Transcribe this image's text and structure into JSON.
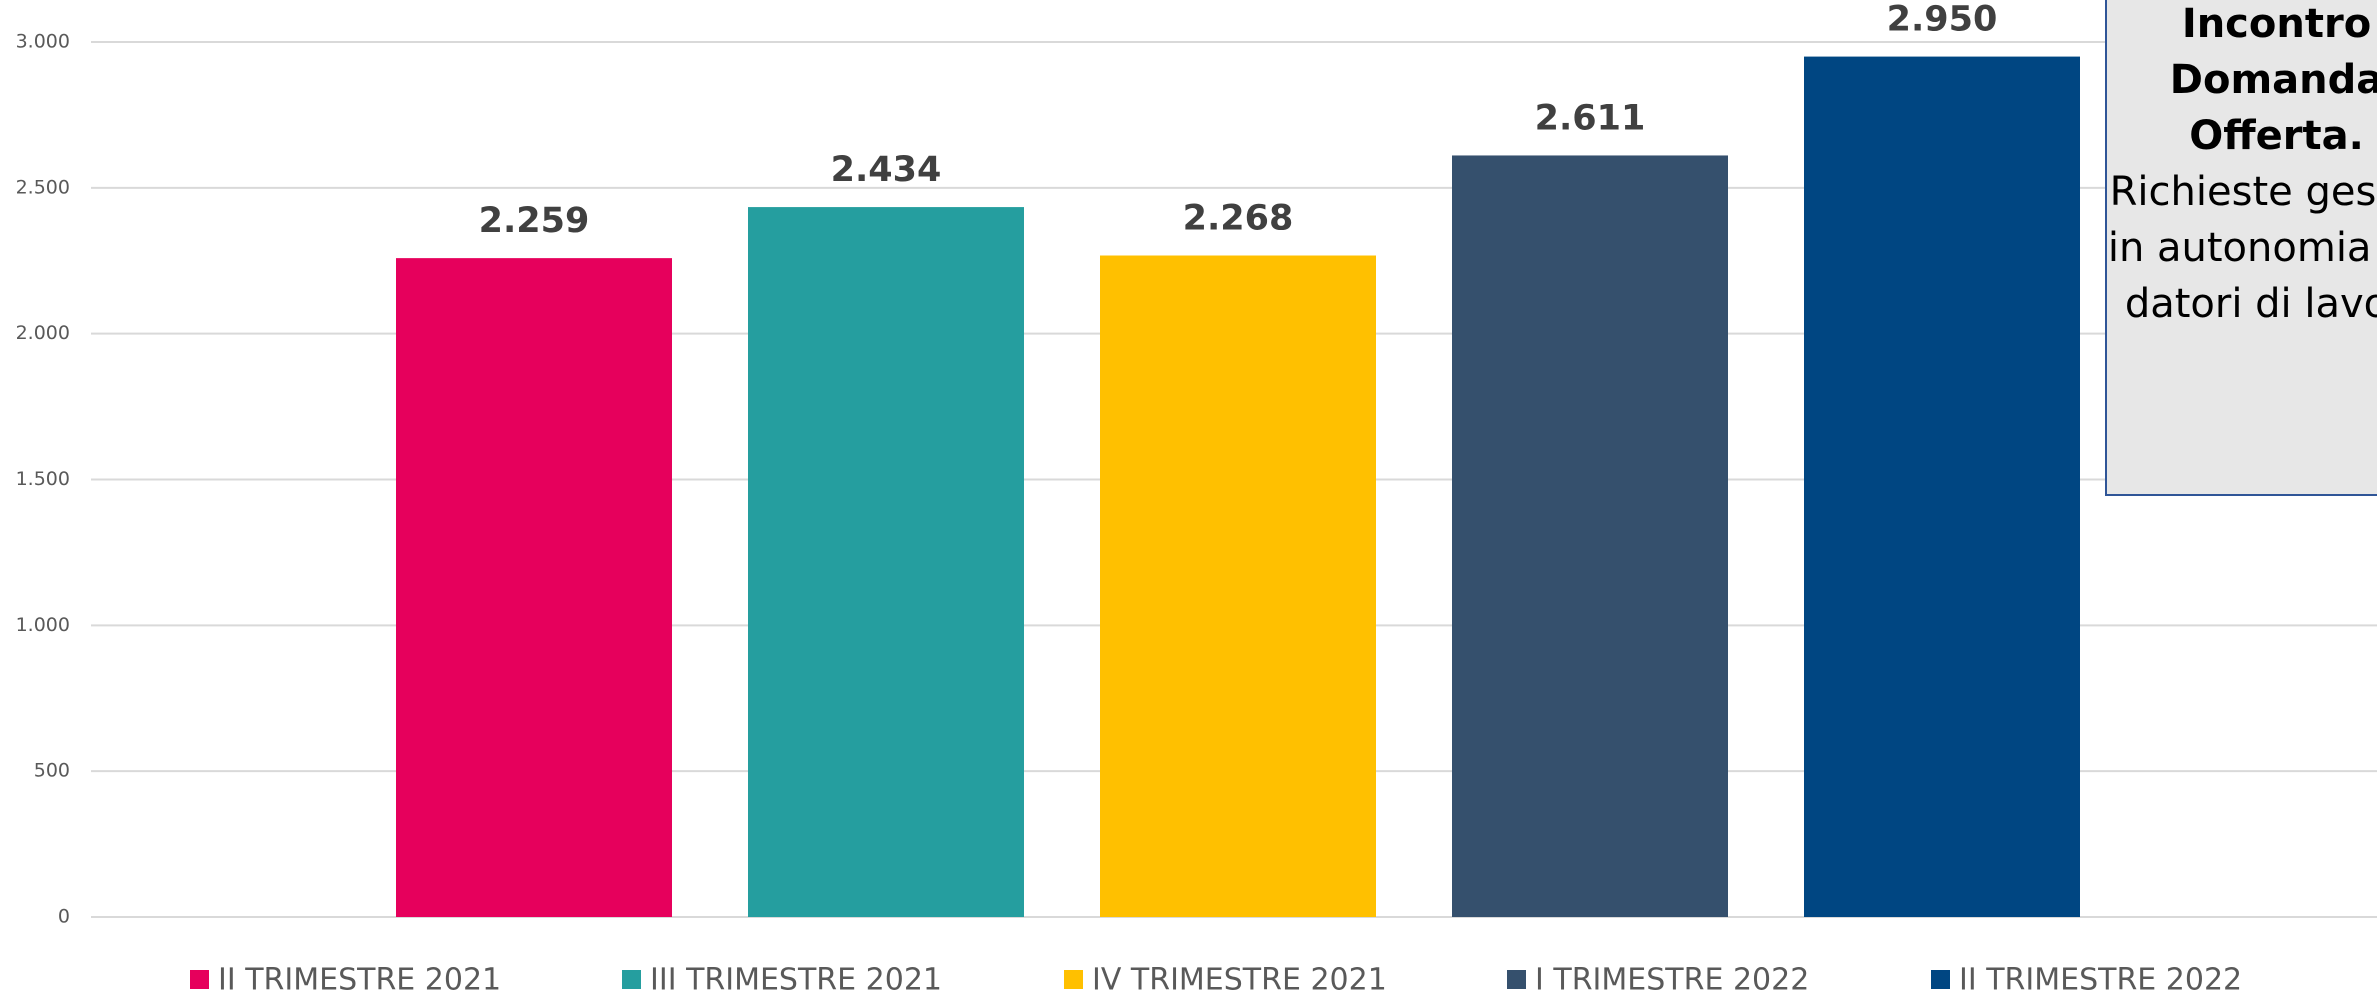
{
  "chart_data": {
    "type": "bar",
    "series": [
      {
        "name": "II TRIMESTRE 2021",
        "color": "#e6005c",
        "values": [
          2259
        ],
        "value_labels": [
          "2.259"
        ]
      },
      {
        "name": "III TRIMESTRE 2021",
        "color": "#259e9f",
        "values": [
          2434
        ],
        "value_labels": [
          "2.434"
        ]
      },
      {
        "name": "IV TRIMESTRE 2021",
        "color": "#ffc000",
        "values": [
          2268
        ],
        "value_labels": [
          "2.268"
        ]
      },
      {
        "name": "I TRIMESTRE 2022",
        "color": "#35506d",
        "values": [
          2611
        ],
        "value_labels": [
          "2.611"
        ]
      },
      {
        "name": "II TRIMESTRE 2022",
        "color": "#004682",
        "values": [
          2950
        ],
        "value_labels": [
          "2.950"
        ]
      }
    ],
    "ylim": [
      0,
      3000
    ],
    "yticks": [
      0,
      500,
      {
        "value": 1000,
        "label": "1.000"
      },
      {
        "value": 1500,
        "label": "1.500"
      },
      {
        "value": 2000,
        "label": "2.000"
      },
      {
        "value": 2500,
        "label": "2.500"
      },
      {
        "value": 3000,
        "label": "3.000"
      }
    ],
    "grid": true,
    "legend": "bottom",
    "annotation": {
      "title": "Incontro Domanda Offerta.",
      "text": "Richieste gestite in autonomia dai datori di lavoro"
    }
  }
}
